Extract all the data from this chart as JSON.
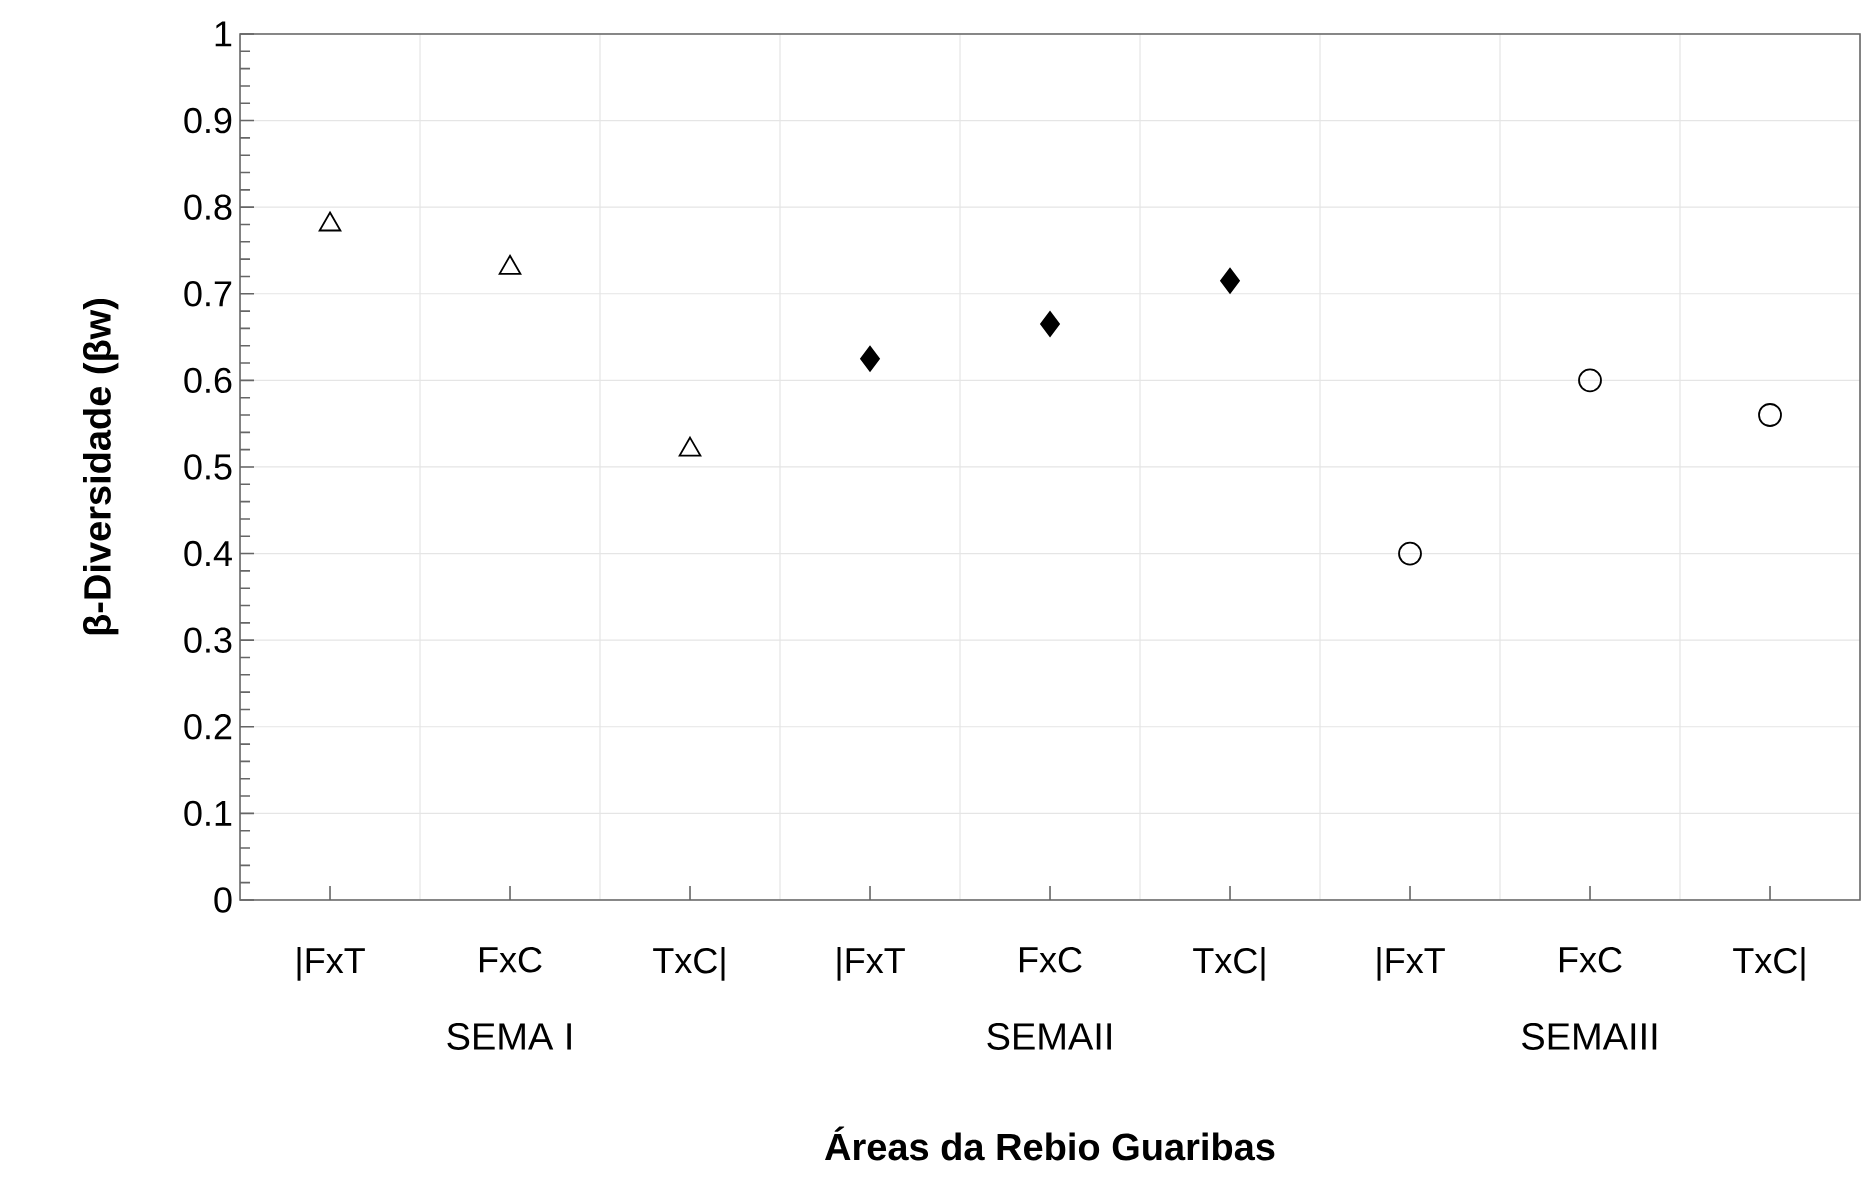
{
  "chart_data": {
    "type": "scatter",
    "xlabel": "Áreas da Rebio Guaribas",
    "ylabel": "β-Diversidade (βw)",
    "categories": [
      "|FxT",
      "FxC",
      "TxC|",
      "|FxT",
      "FxC",
      "TxC|",
      "|FxT",
      "FxC",
      "TxC|"
    ],
    "annotations": [
      "SEMA I",
      "SEMAII",
      "SEMAIII"
    ],
    "series": [
      {
        "color": "#000000",
        "marker": "triangle",
        "values": [
          0.78,
          0.73,
          0.52,
          null,
          null,
          null,
          null,
          null,
          null
        ]
      },
      {
        "color": "#000000",
        "marker": "diamond",
        "values": [
          null,
          null,
          null,
          0.625,
          0.665,
          0.715,
          null,
          null,
          null
        ]
      },
      {
        "color": "#000000",
        "marker": "circle",
        "values": [
          null,
          null,
          null,
          null,
          null,
          null,
          0.4,
          0.6,
          0.56
        ]
      }
    ],
    "ylim": [
      0,
      1
    ],
    "yticks": [
      0,
      0.1,
      0.2,
      0.3,
      0.4,
      0.5,
      0.6,
      0.7,
      0.8,
      0.9,
      1
    ],
    "grid": true
  }
}
